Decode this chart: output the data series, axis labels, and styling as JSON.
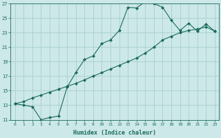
{
  "xlabel": "Humidex (Indice chaleur)",
  "bg_color": "#cce8e8",
  "grid_color": "#aacece",
  "line_color": "#1a6b5a",
  "xlim": [
    -0.5,
    23.5
  ],
  "ylim": [
    11,
    27
  ],
  "yticks": [
    11,
    13,
    15,
    17,
    19,
    21,
    23,
    25,
    27
  ],
  "xticks": [
    0,
    1,
    2,
    3,
    4,
    5,
    6,
    7,
    8,
    9,
    10,
    11,
    12,
    13,
    14,
    15,
    16,
    17,
    18,
    19,
    20,
    21,
    22,
    23
  ],
  "curve1_x": [
    0,
    1,
    2,
    3,
    4,
    5,
    6,
    7,
    8,
    9,
    10,
    11,
    12,
    13,
    14,
    15,
    16,
    17,
    18,
    19,
    20,
    21,
    22,
    23
  ],
  "curve1_y": [
    13.2,
    13.0,
    12.8,
    11.0,
    11.3,
    11.5,
    15.5,
    17.5,
    19.3,
    19.8,
    21.5,
    22.0,
    23.3,
    26.5,
    26.4,
    27.3,
    27.0,
    26.5,
    24.7,
    23.3,
    24.3,
    23.2,
    24.2,
    23.2
  ],
  "curve2_x": [
    0,
    1,
    2,
    3,
    4,
    5,
    6,
    7,
    8,
    9,
    10,
    11,
    12,
    13,
    14,
    15,
    16,
    17,
    18,
    19,
    20,
    21,
    22,
    23
  ],
  "curve2_y": [
    13.2,
    13.5,
    14.0,
    14.4,
    14.8,
    15.2,
    15.6,
    16.0,
    16.5,
    17.0,
    17.5,
    18.0,
    18.5,
    19.0,
    19.5,
    20.2,
    21.0,
    22.0,
    22.5,
    23.0,
    23.3,
    23.5,
    23.8,
    23.2
  ]
}
